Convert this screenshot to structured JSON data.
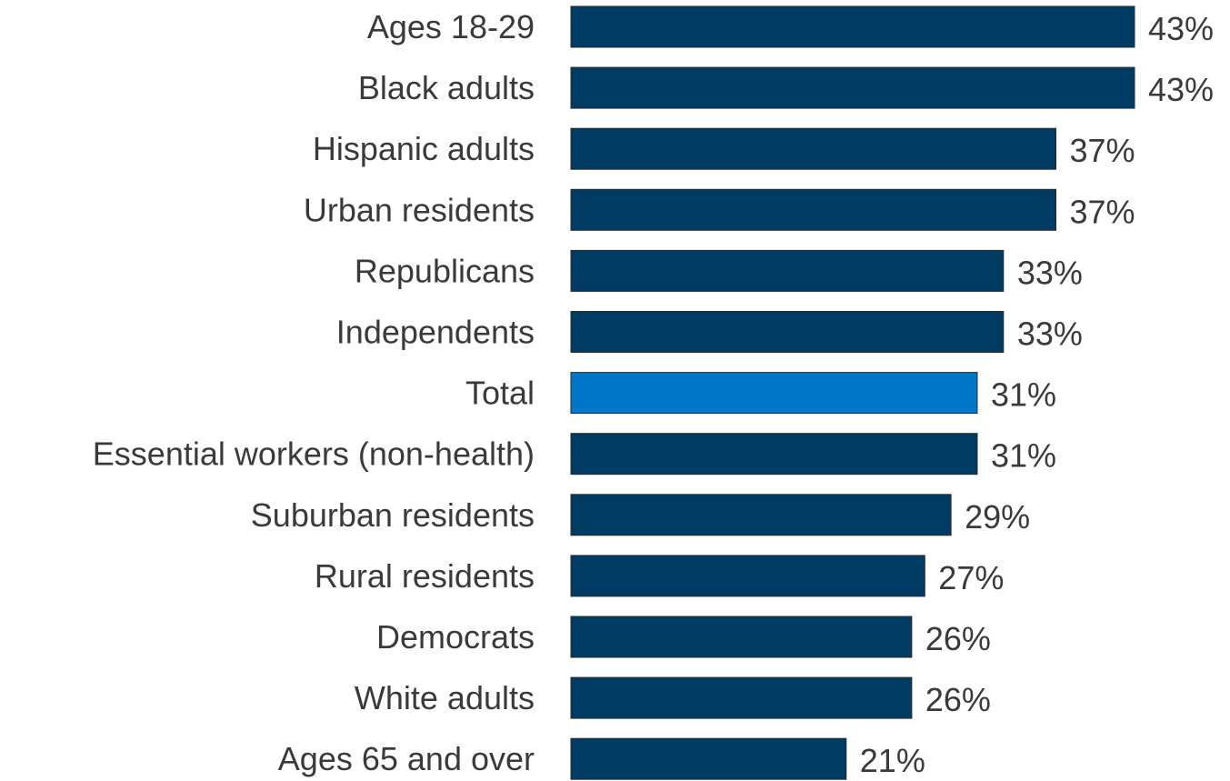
{
  "chart_data": {
    "type": "bar",
    "orientation": "horizontal",
    "categories": [
      "Ages 18-29",
      "Black adults",
      "Hispanic adults",
      "Urban residents",
      "Republicans",
      "Independents",
      "Total",
      "Essential workers (non-health)",
      "Suburban residents",
      "Rural residents",
      "Democrats",
      "White adults",
      "Ages 65 and over"
    ],
    "values": [
      43,
      43,
      37,
      37,
      33,
      33,
      31,
      31,
      29,
      27,
      26,
      26,
      21
    ],
    "value_labels": [
      "43%",
      "43%",
      "37%",
      "37%",
      "33%",
      "33%",
      "31%",
      "31%",
      "29%",
      "27%",
      "26%",
      "26%",
      "21%"
    ],
    "value_unit": "%",
    "highlight_category": "Total",
    "colors": {
      "bar": "#003b63",
      "highlight": "#0077c8",
      "text": "#3a3a3a"
    },
    "xlim": [
      0,
      43
    ],
    "grid": false,
    "legend": "none"
  }
}
